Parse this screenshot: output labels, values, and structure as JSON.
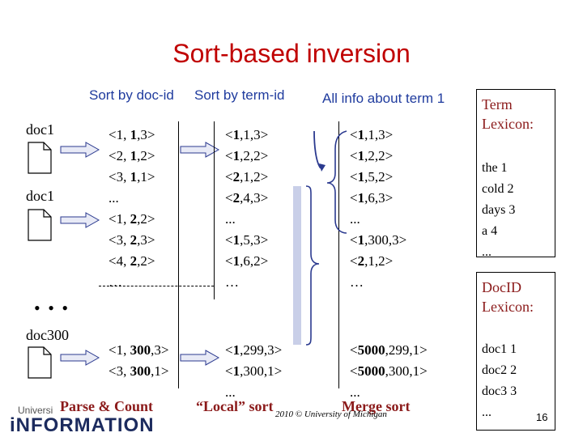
{
  "title": "Sort-based inversion",
  "headers": {
    "sort_doc": "Sort by doc-id",
    "sort_term": "Sort by term-id",
    "all_info": "All info about term 1"
  },
  "docs": [
    "doc1",
    "doc1",
    "doc300"
  ],
  "ellipsis_dots": "• • •",
  "col1_top": [
    [
      "<1, ",
      "1",
      ",3>"
    ],
    [
      "<2, ",
      "1",
      ",2>"
    ],
    [
      "<3, ",
      "1",
      ",1>"
    ],
    [
      "...",
      "",
      ""
    ],
    [
      "<1, ",
      "2",
      ",2>"
    ],
    [
      "<3, ",
      "2",
      ",3>"
    ],
    [
      "<4, ",
      "2",
      ",2>"
    ],
    [
      "…",
      "",
      ""
    ]
  ],
  "col1_bottom": [
    [
      "<1, ",
      "300",
      ",3>"
    ],
    [
      "<3, ",
      "300",
      ",1>"
    ]
  ],
  "col2_top": [
    [
      "<",
      "1",
      ",1,3>"
    ],
    [
      "<",
      "1",
      ",2,2>"
    ],
    [
      "<",
      "2",
      ",1,2>"
    ],
    [
      "<",
      "2",
      ",4,3>"
    ],
    [
      "...",
      "",
      ""
    ],
    [
      "<",
      "1",
      ",5,3>"
    ],
    [
      "<",
      "1",
      ",6,2>"
    ],
    [
      "…",
      "",
      ""
    ]
  ],
  "col2_bottom": [
    [
      "<",
      "1",
      ",299,3>"
    ],
    [
      "<",
      "1",
      ",300,1>"
    ],
    [
      "...",
      "",
      ""
    ]
  ],
  "col3_top": [
    [
      "<",
      "1",
      ",1,3>"
    ],
    [
      "<",
      "1",
      ",2,2>"
    ],
    [
      "<",
      "1",
      ",5,2>"
    ],
    [
      "<",
      "1",
      ",6,3>"
    ],
    [
      "...",
      "",
      ""
    ],
    [
      "<",
      "1",
      ",300,3>"
    ],
    [
      "<",
      "2",
      ",1,2>"
    ],
    [
      "…",
      "",
      ""
    ]
  ],
  "col3_bottom": [
    [
      "<",
      "5000",
      ",299,1>"
    ],
    [
      "<",
      "5000",
      ",300,1>"
    ],
    [
      "...",
      "",
      ""
    ]
  ],
  "term_lexicon": {
    "heading_line1": "Term",
    "heading_line2": "Lexicon:",
    "items": [
      "the 1",
      "cold 2",
      "days 3",
      "a 4",
      "..."
    ]
  },
  "docid_lexicon": {
    "heading_line1": "DocID",
    "heading_line2": "Lexicon:",
    "items": [
      "doc1 1",
      "doc2 2",
      "doc3 3",
      "..."
    ]
  },
  "bottom_labels": {
    "parse": "Parse & Count",
    "local": "“Local” sort",
    "merge": "Merge sort"
  },
  "footer": "2010 © University of Michigan",
  "logo_small": "Universi",
  "logo_big": "iNFORMATION",
  "page_number": "16",
  "colors": {
    "title": "#c00000",
    "headers": "#1f3b9e",
    "labels": "#8b1a1a",
    "arrow_fill": "#e8eaf6",
    "arrow_stroke": "#2b3a8f",
    "brace": "#2b3a8f",
    "bracket_band": "#c9cfe8"
  }
}
